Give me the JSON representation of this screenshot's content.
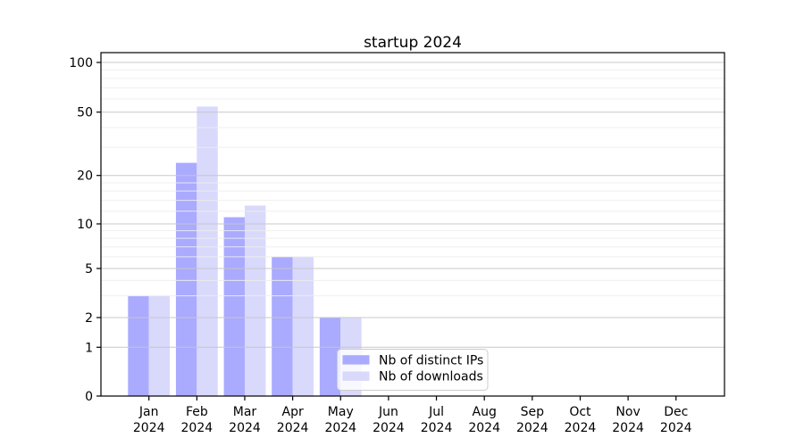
{
  "figure": {
    "background": "#ffffff",
    "frame_color": "#000000",
    "major_grid_color": "#c6c6c6",
    "minor_grid_color": "#ededed"
  },
  "chart_data": {
    "type": "bar",
    "title": "startup 2024",
    "categories": [
      "Jan",
      "Feb",
      "Mar",
      "Apr",
      "May",
      "Jun",
      "Jul",
      "Aug",
      "Sep",
      "Oct",
      "Nov",
      "Dec"
    ],
    "category_sublabel": "2024",
    "series": [
      {
        "name": "Nb of distinct IPs",
        "color": "#aaaaff",
        "values": [
          3,
          24,
          11,
          6,
          2,
          0,
          0,
          0,
          0,
          0,
          0,
          0
        ]
      },
      {
        "name": "Nb of downloads",
        "color": "#d9d9fc",
        "values": [
          3,
          54,
          13,
          6,
          2,
          0,
          0,
          0,
          0,
          0,
          0,
          0
        ]
      }
    ],
    "y_axis": {
      "scale": "symlog",
      "ticks": [
        0,
        1,
        2,
        5,
        10,
        20,
        50,
        100
      ],
      "minor_gridlines": [
        3,
        4,
        6,
        7,
        8,
        9,
        12,
        14,
        16,
        18,
        30,
        40,
        60,
        70,
        80,
        90
      ],
      "ylim": [
        0,
        100
      ]
    },
    "x_axis": {
      "year": "2024"
    },
    "grid": "both",
    "legend": {
      "position": "lower-center",
      "background": "#ffffff",
      "border_color": "#cccccc"
    }
  }
}
